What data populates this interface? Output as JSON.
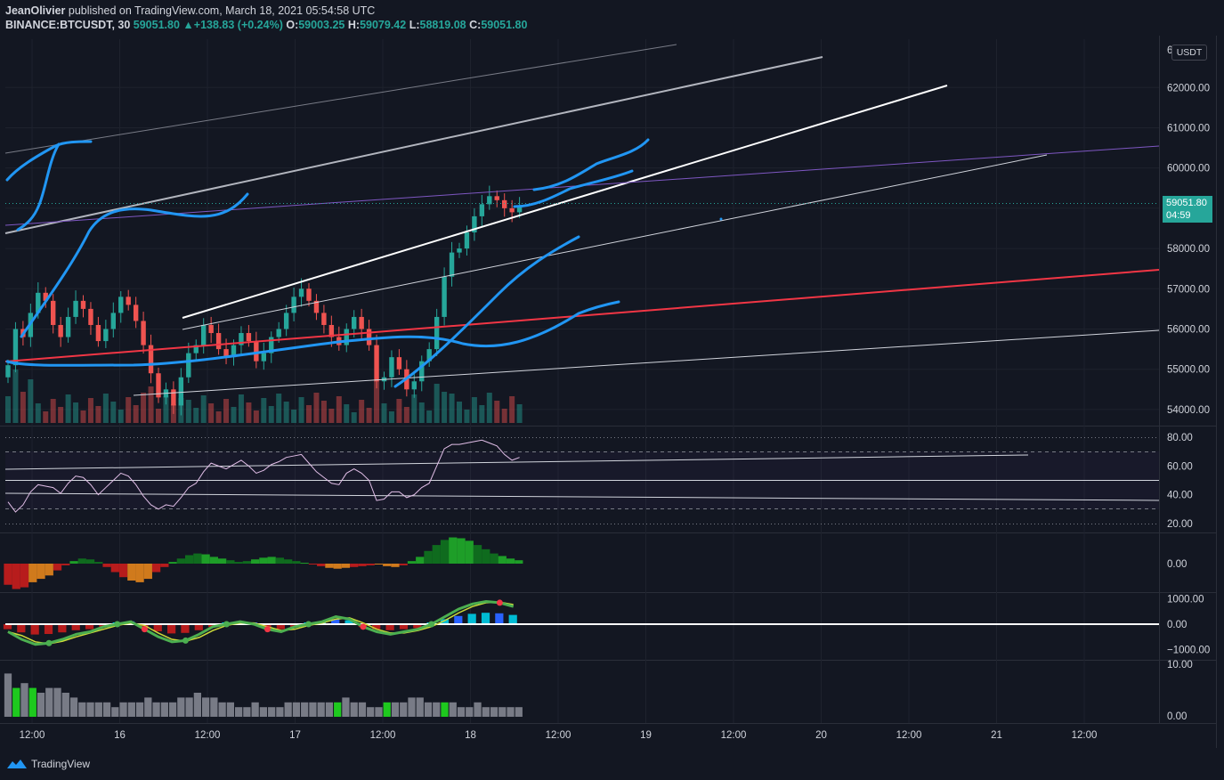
{
  "header": {
    "author": "JeanOlivier",
    "published_text": "published on TradingView.com, March 18, 2021 05:54:58 UTC",
    "symbol": "BINANCE:BTCUSDT, 30",
    "last": "59051.80",
    "change_arrow": "▲",
    "change": "+138.83 (+0.24%)",
    "open_label": "O:",
    "open": "59003.25",
    "high_label": "H:",
    "high": "59079.42",
    "low_label": "L:",
    "low": "58819.08",
    "close_label": "C:",
    "close": "59051.80"
  },
  "currency_badge": "USDT",
  "price_tag": {
    "price": "59051.80",
    "countdown": "04:59"
  },
  "footer": {
    "brand": "TradingView"
  },
  "colors": {
    "background": "#131722",
    "up": "#26a69a",
    "down": "#ef5350",
    "blue_drawing": "#2196f3",
    "red_trend": "#f23645",
    "purple_trend": "#7e57c2",
    "rsi_line": "#e1bee7"
  },
  "chart_data": {
    "type": "candlestick",
    "price_axis": {
      "ticks": [
        "62000.00",
        "61000.00",
        "60000.00",
        "59000.00",
        "58000.00",
        "57000.00",
        "56000.00",
        "55000.00",
        "54000.00"
      ],
      "top_cut_label": "6",
      "range": [
        53600,
        63200
      ]
    },
    "time_axis": {
      "ticks": [
        "12:00",
        "16",
        "12:00",
        "17",
        "12:00",
        "18",
        "12:00",
        "19",
        "12:00",
        "20",
        "12:00",
        "21",
        "12:00"
      ]
    },
    "rsi": {
      "ticks": [
        "80.00",
        "60.00",
        "40.00",
        "20.00"
      ],
      "upper_band": 70,
      "lower_band": 30,
      "range": [
        15,
        85
      ]
    },
    "momentum": {
      "ticks": [
        "0.00"
      ]
    },
    "oscillator": {
      "ticks": [
        "1000.00",
        "0.00",
        "−1000.00"
      ],
      "range": [
        -1200,
        1200
      ]
    },
    "volume_study": {
      "ticks": [
        "10.00",
        "0.00"
      ]
    },
    "closes": [
      55100,
      56000,
      55800,
      56400,
      56900,
      56700,
      56100,
      55800,
      56300,
      56700,
      56500,
      56100,
      55700,
      56000,
      56400,
      56800,
      56600,
      56200,
      55600,
      54900,
      54300,
      54500,
      54100,
      54800,
      55400,
      55600,
      56100,
      55900,
      55500,
      55300,
      55600,
      55900,
      55700,
      55200,
      55400,
      55800,
      56000,
      56400,
      56800,
      57000,
      56700,
      56400,
      56100,
      55800,
      55600,
      56000,
      56300,
      56000,
      55600,
      54700,
      54800,
      55300,
      55000,
      54500,
      54700,
      55200,
      55500,
      56300,
      57300,
      57900,
      58000,
      58400,
      58800,
      59100,
      59300,
      59200,
      59000,
      58900,
      59050
    ],
    "rsi_values": [
      35,
      28,
      33,
      42,
      47,
      46,
      45,
      41,
      48,
      53,
      52,
      47,
      40,
      45,
      50,
      55,
      53,
      47,
      39,
      33,
      30,
      33,
      32,
      38,
      45,
      48,
      56,
      62,
      60,
      58,
      61,
      64,
      60,
      55,
      57,
      61,
      63,
      66,
      67,
      68,
      62,
      56,
      52,
      48,
      47,
      55,
      58,
      55,
      50,
      36,
      37,
      42,
      42,
      38,
      40,
      45,
      48,
      60,
      72,
      75,
      75,
      76,
      77,
      78,
      76,
      74,
      68,
      64,
      66
    ],
    "momentum_values": [
      -25,
      -30,
      -28,
      -22,
      -18,
      -14,
      -8,
      -2,
      3,
      6,
      5,
      2,
      -4,
      -10,
      -16,
      -20,
      -22,
      -18,
      -10,
      -4,
      2,
      6,
      10,
      12,
      11,
      8,
      6,
      4,
      2,
      3,
      5,
      7,
      8,
      7,
      5,
      3,
      1,
      -1,
      -3,
      -5,
      -6,
      -5,
      -4,
      -3,
      -2,
      -1,
      -3,
      -4,
      -2,
      3,
      8,
      15,
      22,
      28,
      31,
      30,
      27,
      22,
      17,
      12,
      9,
      6,
      4
    ],
    "oscillator_values": [
      -300,
      -600,
      -800,
      -750,
      -600,
      -400,
      -300,
      -100,
      0,
      100,
      -200,
      -500,
      -700,
      -650,
      -400,
      -100,
      0,
      100,
      0,
      -200,
      -300,
      -100,
      0,
      100,
      300,
      200,
      -100,
      -300,
      -400,
      -300,
      -200,
      0,
      300,
      600,
      800,
      900,
      850,
      700
    ],
    "volume_study_values": [
      9,
      6,
      7,
      6,
      5,
      6,
      6,
      5,
      4,
      3,
      3,
      3,
      3,
      2,
      3,
      3,
      3,
      4,
      3,
      3,
      3,
      4,
      4,
      5,
      4,
      4,
      3,
      3,
      2,
      2,
      3,
      2,
      2,
      2,
      3,
      3,
      3,
      3,
      3,
      3,
      3,
      4,
      3,
      3,
      2,
      2,
      3,
      3,
      3,
      4,
      4,
      3,
      3,
      3,
      3,
      2,
      2,
      3,
      2,
      2,
      2,
      2,
      2
    ]
  }
}
